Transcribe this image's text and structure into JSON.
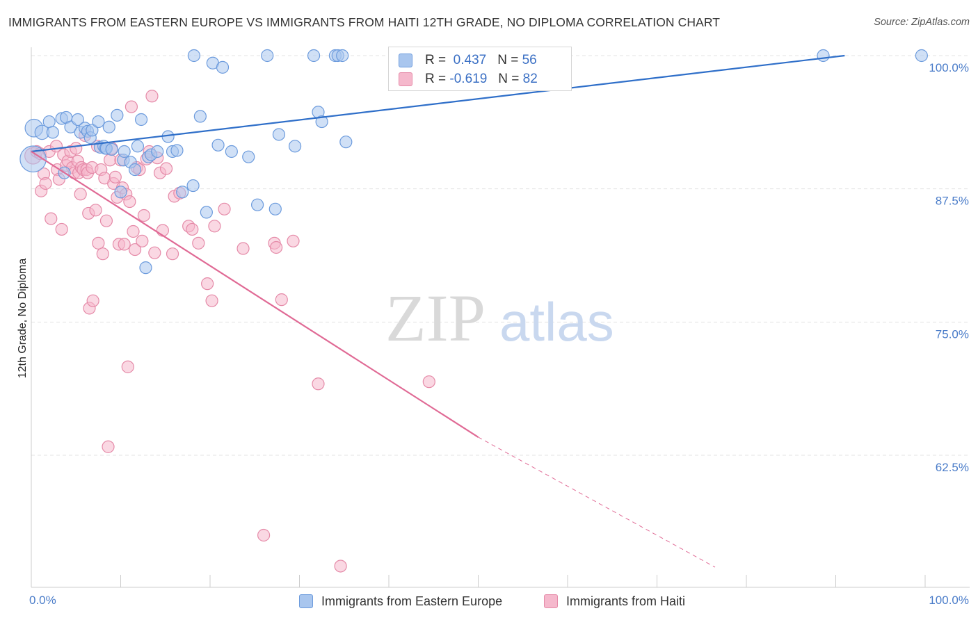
{
  "header": {
    "title": "IMMIGRANTS FROM EASTERN EUROPE VS IMMIGRANTS FROM HAITI 12TH GRADE, NO DIPLOMA CORRELATION CHART",
    "source": "Source: ZipAtlas.com"
  },
  "watermark": {
    "zip": "ZIP",
    "atlas": "atlas"
  },
  "legend": {
    "rows": [
      {
        "r_label": "R =",
        "r_value": "0.437",
        "n_label": "N =",
        "n_value": "56"
      },
      {
        "r_label": "R =",
        "r_value": "-0.619",
        "n_label": "N =",
        "n_value": "82"
      }
    ]
  },
  "bottom_legend": {
    "items": [
      "Immigrants from Eastern Europe",
      "Immigrants from Haiti"
    ]
  },
  "colors": {
    "blue_fill": "#a9c6ee",
    "blue_stroke": "#6c9bdd",
    "blue_line": "#2f6fc9",
    "pink_fill": "#f5b8cc",
    "pink_stroke": "#e58aa8",
    "pink_line": "#e06a95",
    "tick_label": "#4a7cc9",
    "grid": "#e3e3e3"
  },
  "chart_data": {
    "type": "scatter",
    "title": "IMMIGRANTS FROM EASTERN EUROPE VS IMMIGRANTS FROM HAITI 12TH GRADE, NO DIPLOMA CORRELATION CHART",
    "xlabel": "",
    "ylabel": "12th Grade, No Diploma",
    "xlim": [
      0,
      100
    ],
    "ylim": [
      52,
      101.5
    ],
    "x_tick_labels": [
      "0.0%",
      "100.0%"
    ],
    "y_ticks": [
      {
        "value": 100,
        "label": "100.0%"
      },
      {
        "value": 87.5,
        "label": "87.5%"
      },
      {
        "value": 75,
        "label": "75.0%"
      },
      {
        "value": 62.5,
        "label": "62.5%"
      }
    ],
    "grid": "horizontal dashed",
    "legend": "top-center",
    "series": [
      {
        "name": "Immigrants from Eastern Europe",
        "R": 0.437,
        "N": 56,
        "trend": {
          "x": [
            0,
            91
          ],
          "y": [
            91.0,
            100.0
          ]
        },
        "points": [
          [
            0.2,
            90.3,
            2.2
          ],
          [
            0.3,
            93.2,
            1.5
          ],
          [
            1.2,
            92.8,
            1.2
          ],
          [
            2.0,
            93.8,
            1
          ],
          [
            2.4,
            92.8,
            1
          ],
          [
            3.4,
            94.1,
            1
          ],
          [
            3.7,
            89.0,
            1
          ],
          [
            3.9,
            94.2,
            1
          ],
          [
            4.4,
            93.3,
            1
          ],
          [
            5.2,
            94.0,
            1
          ],
          [
            5.5,
            92.8,
            1
          ],
          [
            6.0,
            93.2,
            1
          ],
          [
            6.3,
            92.9,
            1
          ],
          [
            6.6,
            92.3,
            1
          ],
          [
            6.8,
            93.0,
            1
          ],
          [
            7.5,
            93.8,
            1
          ],
          [
            7.7,
            91.4,
            1
          ],
          [
            8.1,
            91.5,
            1
          ],
          [
            8.3,
            91.3,
            1
          ],
          [
            8.7,
            93.3,
            1
          ],
          [
            8.4,
            91.3,
            1
          ],
          [
            9.0,
            91.2,
            1
          ],
          [
            9.6,
            94.4,
            1
          ],
          [
            10.0,
            87.2,
            1
          ],
          [
            10.3,
            90.2,
            1
          ],
          [
            10.4,
            91.0,
            1
          ],
          [
            11.1,
            90.0,
            1
          ],
          [
            11.6,
            89.3,
            1
          ],
          [
            11.9,
            91.5,
            1
          ],
          [
            12.3,
            94.0,
            1
          ],
          [
            12.8,
            80.1,
            1
          ],
          [
            13.1,
            90.5,
            1
          ],
          [
            13.4,
            90.7,
            1
          ],
          [
            14.1,
            91.0,
            1
          ],
          [
            15.3,
            92.4,
            1
          ],
          [
            15.8,
            91.0,
            1
          ],
          [
            16.3,
            91.1,
            1
          ],
          [
            16.9,
            87.2,
            1
          ],
          [
            18.1,
            87.8,
            1
          ],
          [
            18.2,
            100.0,
            1
          ],
          [
            18.9,
            94.3,
            1
          ],
          [
            19.6,
            85.3,
            1
          ],
          [
            20.3,
            99.3,
            1
          ],
          [
            20.9,
            91.6,
            1
          ],
          [
            21.4,
            98.9,
            1
          ],
          [
            22.4,
            91.0,
            1
          ],
          [
            24.3,
            90.5,
            1
          ],
          [
            25.3,
            86.0,
            1
          ],
          [
            26.4,
            100.0,
            1
          ],
          [
            27.3,
            85.6,
            1
          ],
          [
            27.7,
            92.6,
            1
          ],
          [
            29.5,
            91.5,
            1
          ],
          [
            31.6,
            100.0,
            1
          ],
          [
            32.1,
            94.7,
            1
          ],
          [
            32.5,
            93.8,
            1
          ],
          [
            34.0,
            100.0,
            1
          ],
          [
            34.3,
            100.0,
            1
          ],
          [
            34.8,
            100.0,
            1
          ],
          [
            35.2,
            91.9,
            1
          ],
          [
            88.6,
            100.0,
            1
          ],
          [
            99.6,
            100.0,
            1
          ]
        ]
      },
      {
        "name": "Immigrants from Haiti",
        "R": -0.619,
        "N": 82,
        "trend": {
          "x": [
            0,
            50
          ],
          "y": [
            91.0,
            64.2
          ]
        },
        "trend_dashed": {
          "x": [
            50,
            76.5
          ],
          "y": [
            64.2,
            52.0
          ]
        },
        "points": [
          [
            0.2,
            90.6,
            1.4
          ],
          [
            0.6,
            91.0,
            1
          ],
          [
            1.0,
            90.8,
            1
          ],
          [
            1.1,
            87.3,
            1
          ],
          [
            1.4,
            88.9,
            1
          ],
          [
            1.6,
            88.0,
            1
          ],
          [
            2.0,
            91.0,
            1
          ],
          [
            2.2,
            84.7,
            1
          ],
          [
            2.8,
            91.5,
            1
          ],
          [
            2.9,
            89.3,
            1
          ],
          [
            3.1,
            88.4,
            1
          ],
          [
            3.4,
            83.7,
            1
          ],
          [
            3.6,
            90.7,
            1
          ],
          [
            3.9,
            89.7,
            1
          ],
          [
            4.1,
            90.1,
            1
          ],
          [
            4.4,
            91.0,
            1
          ],
          [
            4.6,
            89.5,
            1
          ],
          [
            4.8,
            89.0,
            1
          ],
          [
            5.0,
            91.3,
            1
          ],
          [
            5.2,
            90.1,
            1
          ],
          [
            5.3,
            89.0,
            1
          ],
          [
            5.5,
            87.0,
            1
          ],
          [
            5.6,
            89.5,
            1
          ],
          [
            5.8,
            89.3,
            1
          ],
          [
            6.0,
            92.5,
            1
          ],
          [
            6.2,
            89.3,
            1
          ],
          [
            6.3,
            89.0,
            1
          ],
          [
            6.4,
            85.2,
            1
          ],
          [
            6.5,
            76.3,
            1
          ],
          [
            6.8,
            89.5,
            1
          ],
          [
            6.9,
            77.0,
            1
          ],
          [
            7.2,
            85.5,
            1
          ],
          [
            7.4,
            91.5,
            1
          ],
          [
            7.5,
            82.4,
            1
          ],
          [
            7.8,
            89.3,
            1
          ],
          [
            8.0,
            81.4,
            1
          ],
          [
            8.2,
            88.5,
            1
          ],
          [
            8.4,
            84.5,
            1
          ],
          [
            8.6,
            63.3,
            1
          ],
          [
            8.8,
            90.2,
            1
          ],
          [
            9.0,
            91.3,
            1
          ],
          [
            9.2,
            88.0,
            1
          ],
          [
            9.4,
            88.6,
            1
          ],
          [
            9.6,
            86.7,
            1
          ],
          [
            9.8,
            82.3,
            1
          ],
          [
            10.0,
            90.2,
            1
          ],
          [
            10.2,
            87.6,
            1
          ],
          [
            10.4,
            82.3,
            1
          ],
          [
            10.6,
            87.0,
            1
          ],
          [
            10.8,
            70.8,
            1
          ],
          [
            11.0,
            86.3,
            1
          ],
          [
            11.2,
            95.2,
            1
          ],
          [
            11.4,
            83.5,
            1
          ],
          [
            11.6,
            81.8,
            1
          ],
          [
            11.8,
            89.5,
            1
          ],
          [
            12.1,
            89.3,
            1
          ],
          [
            12.4,
            82.6,
            1
          ],
          [
            12.6,
            85.0,
            1
          ],
          [
            12.9,
            90.3,
            1
          ],
          [
            13.2,
            91.0,
            1
          ],
          [
            13.5,
            96.2,
            1
          ],
          [
            13.8,
            81.5,
            1
          ],
          [
            14.1,
            90.4,
            1
          ],
          [
            14.4,
            89.0,
            1
          ],
          [
            14.7,
            83.6,
            1
          ],
          [
            15.1,
            89.4,
            1
          ],
          [
            15.8,
            81.4,
            1
          ],
          [
            16.0,
            86.8,
            1
          ],
          [
            16.6,
            87.1,
            1
          ],
          [
            17.6,
            84.0,
            1
          ],
          [
            18.0,
            83.7,
            1
          ],
          [
            18.7,
            82.4,
            1
          ],
          [
            19.7,
            78.6,
            1
          ],
          [
            20.2,
            77.0,
            1
          ],
          [
            20.5,
            84.0,
            1
          ],
          [
            21.6,
            85.6,
            1
          ],
          [
            23.7,
            81.9,
            1
          ],
          [
            26.0,
            55.0,
            1
          ],
          [
            27.2,
            82.4,
            1
          ],
          [
            27.4,
            82.0,
            1
          ],
          [
            28.0,
            77.1,
            1
          ],
          [
            29.3,
            82.6,
            1
          ],
          [
            32.1,
            69.2,
            1
          ],
          [
            34.6,
            52.1,
            1
          ],
          [
            44.5,
            69.4,
            1
          ]
        ]
      }
    ]
  }
}
